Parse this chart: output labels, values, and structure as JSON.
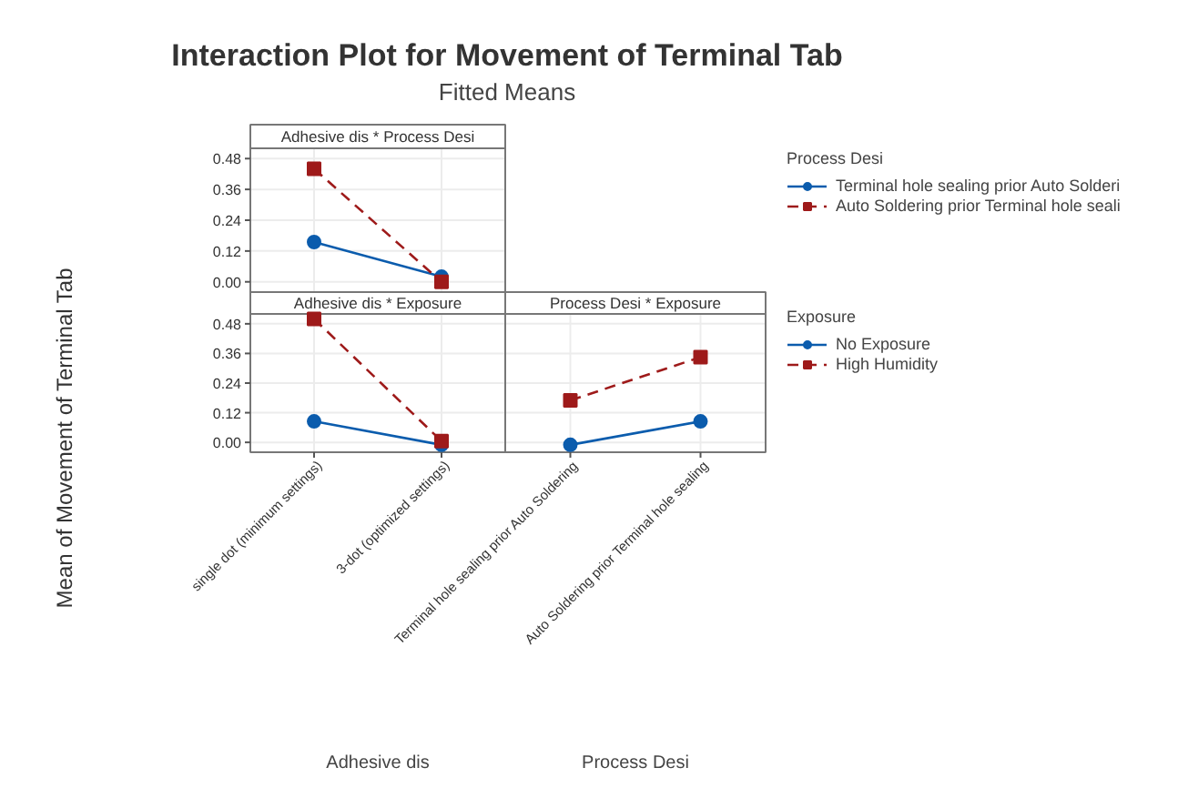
{
  "chart_data": [
    {
      "type": "line",
      "title": "Interaction Plot for Movement of Terminal Tab",
      "subtitle": "Fitted Means",
      "annotations": [
        "Adhesive dis * Process Desi"
      ],
      "categories": [
        null,
        null
      ],
      "ylim": [
        -0.04,
        0.52
      ],
      "yticks": [
        {
          "value": 0,
          "label": "0.00"
        },
        0.12,
        0.24,
        0.36,
        0.48
      ],
      "grid": true,
      "legend": "right",
      "legend_title": "Process Desi",
      "series": [
        {
          "name": "Terminal hole sealing prior Auto Solderi",
          "color": "#0b5cad",
          "values": [
            0.155,
            0.02
          ],
          "marker": "circle",
          "line_style": "solid"
        },
        {
          "name": "Auto Soldering prior Terminal hole seali",
          "color": "#9e1a1a",
          "values": [
            0.44,
            0.0
          ],
          "marker": "square",
          "line_style": "dashed"
        }
      ]
    },
    {
      "type": "line",
      "annotations": [
        "Adhesive dis * Exposure"
      ],
      "xlabel": "Adhesive dis",
      "ylabel": "Mean of Movement of Terminal Tab",
      "categories": [
        "single dot (minimum settings)",
        "3-dot (optimized settings)"
      ],
      "ylim": [
        -0.04,
        0.52
      ],
      "yticks": [
        {
          "value": 0,
          "label": "0.00"
        },
        0.12,
        0.24,
        0.36,
        0.48
      ],
      "grid": true,
      "series": [
        {
          "color": "#0b5cad",
          "values": [
            0.085,
            -0.01
          ],
          "marker": "circle",
          "line_style": "solid"
        },
        {
          "color": "#9e1a1a",
          "values": [
            0.5,
            0.005
          ],
          "marker": "square",
          "line_style": "dashed"
        }
      ]
    },
    {
      "type": "line",
      "annotations": [
        "Process Desi * Exposure"
      ],
      "xlabel": "Process Desi",
      "categories": [
        "Terminal hole sealing prior Auto Soldering",
        "Auto Soldering prior Terminal hole sealing"
      ],
      "ylim": [
        -0.04,
        0.52
      ],
      "yticks": [
        0,
        0.12,
        0.24,
        0.36,
        0.48
      ],
      "tick_labels": "x",
      "grid": true,
      "legend": "right",
      "legend_title": "Exposure",
      "series": [
        {
          "name": "No Exposure",
          "color": "#0b5cad",
          "values": [
            -0.01,
            0.085
          ],
          "marker": "circle",
          "line_style": "solid"
        },
        {
          "name": "High Humidity",
          "color": "#9e1a1a",
          "values": [
            0.17,
            0.345
          ],
          "marker": "square",
          "line_style": "dashed"
        }
      ]
    }
  ]
}
